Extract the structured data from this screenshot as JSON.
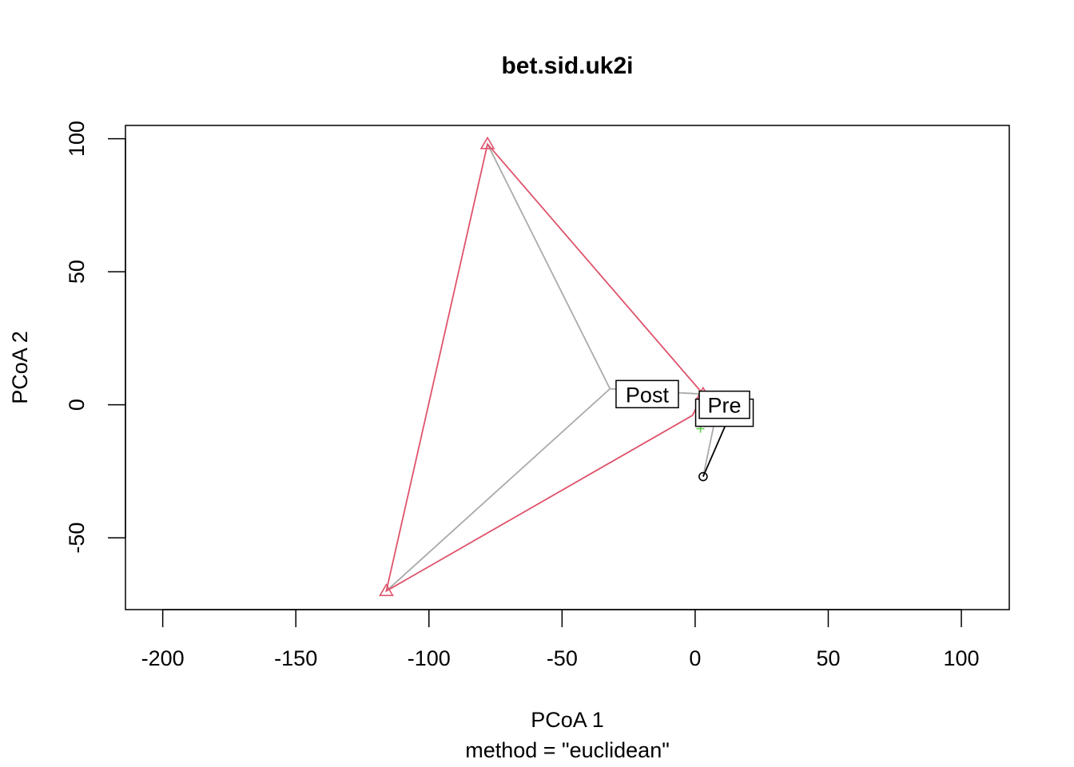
{
  "chart_data": {
    "type": "scatter",
    "title": "bet.sid.uk2i",
    "xlabel": "PCoA 1",
    "sublabel": "method = \"euclidean\"",
    "ylabel": "PCoA 2",
    "xlim": [
      -214,
      118
    ],
    "ylim": [
      -77,
      105
    ],
    "xticks": [
      -200,
      -150,
      -100,
      -50,
      0,
      50,
      100
    ],
    "yticks": [
      -50,
      0,
      50,
      100
    ],
    "grid": false,
    "colors": {
      "post": "#DF536B",
      "post_spokes": "#AAAAAA",
      "pre": "#000000",
      "pre_spokes": "#AAAAAA",
      "third": "#61D04F"
    },
    "groups": [
      {
        "label": "Post",
        "color": "#DF536B",
        "marker": "triangle",
        "centroid": {
          "x": -32,
          "y": 6
        },
        "points": [
          {
            "x": -78,
            "y": 98
          },
          {
            "x": -116,
            "y": -70
          },
          {
            "x": 3,
            "y": 4
          }
        ],
        "hull": [
          [
            -78,
            98
          ],
          [
            -116,
            -70
          ],
          [
            -1,
            -4
          ],
          [
            3,
            4
          ]
        ],
        "label_pos": {
          "x": -18,
          "y": 4
        }
      },
      {
        "label": "Pre",
        "color": "#000000",
        "marker": "circle",
        "centroid": {
          "x": 8,
          "y": -3
        },
        "points": [
          {
            "x": 3,
            "y": -27
          },
          {
            "x": 10,
            "y": -5
          },
          {
            "x": 13,
            "y": -4
          }
        ],
        "hull": [
          [
            3,
            -27
          ],
          [
            13,
            -4
          ]
        ],
        "label_pos": {
          "x": 11,
          "y": 0
        }
      },
      {
        "label": "",
        "color": "#61D04F",
        "marker": "plus",
        "centroid": {
          "x": 2,
          "y": -8
        },
        "points": [
          {
            "x": 2,
            "y": -9
          }
        ],
        "hull": [],
        "label_pos": {
          "x": 11,
          "y": -3
        }
      }
    ]
  }
}
